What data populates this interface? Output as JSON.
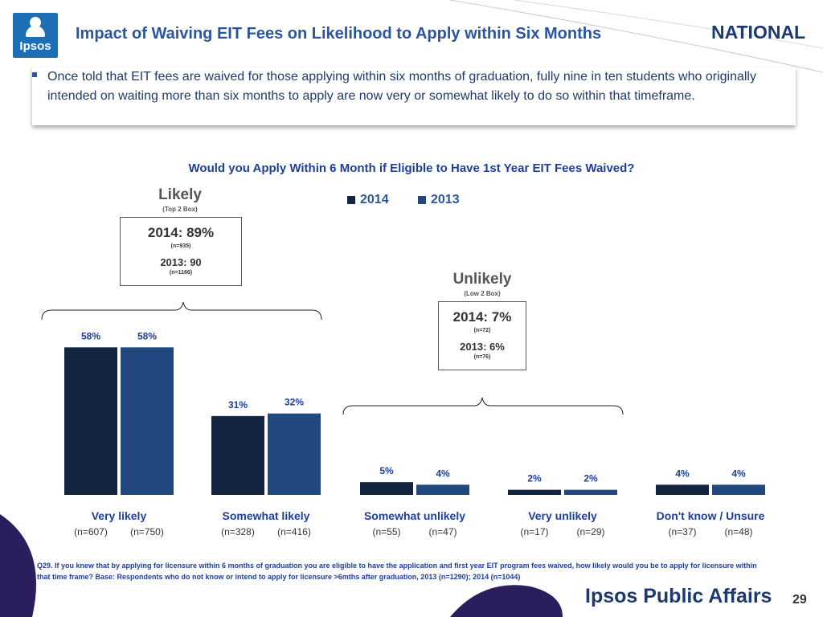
{
  "header": {
    "logo_text": "Ipsos",
    "title": "Impact of Waiving EIT Fees on Likelihood to Apply within Six Months",
    "region": "NATIONAL"
  },
  "callout": {
    "text": "Once told that EIT fees are waived for those applying within six months of graduation, fully nine in ten students who originally intended on waiting more than six months to apply are now very or somewhat likely to do so within that timeframe."
  },
  "legend": [
    {
      "label": "2014",
      "color": "#12243f"
    },
    {
      "label": "2013",
      "color": "#21497f"
    }
  ],
  "summary": {
    "likely": {
      "heading": "Likely",
      "sub": "(Top 2 Box)",
      "v2014": "2014: 89%",
      "n2014": "(n=935)",
      "v2013": "2013: 90",
      "n2013": "(n=1166)"
    },
    "unlikely": {
      "heading": "Unlikely",
      "sub": "(Low 2 Box)",
      "v2014": "2014: 7%",
      "n2014": "(n=72)",
      "v2013": "2013: 6%",
      "n2013": "(n=76)"
    }
  },
  "chart_data": {
    "type": "bar",
    "title": "Would you Apply Within 6 Month if Eligible to Have 1st Year EIT Fees Waived?",
    "categories": [
      "Very likely",
      "Somewhat likely",
      "Somewhat unlikely",
      "Very unlikely",
      "Don't know / Unsure"
    ],
    "series": [
      {
        "name": "2014",
        "values": [
          58,
          31,
          5,
          2,
          4
        ],
        "labels": [
          "58%",
          "31%",
          "5%",
          "2%",
          "4%"
        ],
        "n": [
          "(n=607)",
          "(n=328)",
          "(n=55)",
          "(n=17)",
          "(n=37)"
        ]
      },
      {
        "name": "2013",
        "values": [
          58,
          32,
          4,
          2,
          4
        ],
        "labels": [
          "58%",
          "32%",
          "4%",
          "2%",
          "4%"
        ],
        "n": [
          "(n=750)",
          "(n=416)",
          "(n=47)",
          "(n=29)",
          "(n=48)"
        ]
      }
    ],
    "ylim": [
      0,
      60
    ],
    "grid": false,
    "legend_position": "top"
  },
  "footnote": "Q29. If you knew that by applying for licensure within 6 months of graduation you are eligible to have the application and first year EIT program fees waived, how likely would you be to apply for licensure within that time frame? Base:  Respondents who do not know or intend to apply for licensure >6mths after graduation,  2013 (n=1290); 2014 (n=1044)",
  "footer": {
    "brand": "Ipsos Public Affairs",
    "page": "29"
  }
}
